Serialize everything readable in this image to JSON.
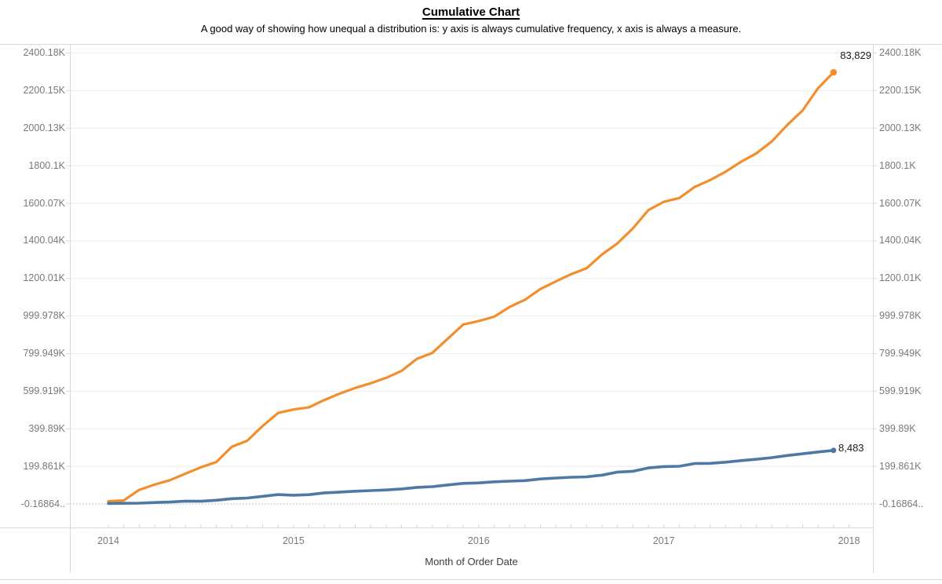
{
  "header": {
    "title": "Cumulative Chart",
    "subtitle": "A good way of showing how unequal a distribution is: y axis is always cumulative frequency, x axis is always a measure."
  },
  "chart_data": {
    "type": "line",
    "title": "Cumulative Chart",
    "xlabel": "Month of Order Date",
    "ylabel": "",
    "grid": "horizontal",
    "legend": "none",
    "y_axis_mirrored_right": true,
    "y_tick_labels": [
      "2400.18K",
      "2200.15K",
      "2000.13K",
      "1800.1K",
      "1600.07K",
      "1400.04K",
      "1200.01K",
      "999.978K",
      "799.949K",
      "599.919K",
      "399.89K",
      "199.861K",
      "-0.16864.."
    ],
    "y_axis_top_tick_value": 2400180,
    "y_axis_bottom_tick_value": -168.64,
    "x_tick_labels": [
      "2014",
      "2015",
      "2016",
      "2017",
      "2018"
    ],
    "x_months_span": 48,
    "zero_line_style": "dotted",
    "series": [
      {
        "name": "orange",
        "color": "#f28e2b",
        "end_label": "83,829",
        "values": [
          14237,
          18757,
          74448,
          102743,
          126391,
          160986,
          194932,
          222841,
          304618,
          336071,
          414700,
          484245,
          502419,
          514370,
          553096,
          587291,
          617422,
          642219,
          670984,
          707882,
          772477,
          803881,
          879854,
          954774,
          973316,
          996294,
          1048010,
          1086760,
          1143748,
          1184092,
          1223354,
          1254469,
          1327879,
          1387567,
          1466979,
          1563978,
          1607949,
          1628250,
          1687122,
          1723644,
          1767905,
          1820887,
          1866151,
          1929272,
          2017139,
          2094916,
          2213364,
          2297193
        ]
      },
      {
        "name": "blue",
        "color": "#4e79a7",
        "end_label": "8,483",
        "values": [
          2450,
          3313,
          3812,
          7301,
          10040,
          15018,
          14177,
          19495,
          27823,
          31271,
          40563,
          49546,
          46265,
          49079,
          58811,
          62998,
          67665,
          71000,
          74288,
          79643,
          87852,
          91798,
          101091,
          109108,
          111933,
          117526,
          121137,
          124114,
          132776,
          137526,
          141958,
          144020,
          153348,
          169591,
          173602,
          191487,
          198628,
          200242,
          214994,
          215927,
          222269,
          230492,
          237445,
          246485,
          257476,
          266751,
          276441,
          284924
        ]
      }
    ],
    "style": {
      "grid_color": "#ebebeb",
      "zero_line_color": "#b0b0b0",
      "border_color": "#d9d9d9",
      "tick_color": "#d7d7d7",
      "tick_label_color": "#797979",
      "axis_title_color": "#3d3d3d",
      "annotation_color": "#1c1c1c"
    }
  }
}
